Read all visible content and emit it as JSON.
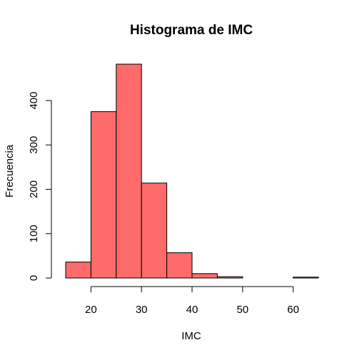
{
  "chart_data": {
    "type": "bar",
    "title": "Histograma de IMC",
    "xlabel": "IMC",
    "ylabel": "Frecuencia",
    "bins": [
      {
        "start": 15,
        "end": 20,
        "count": 36
      },
      {
        "start": 20,
        "end": 25,
        "count": 375
      },
      {
        "start": 25,
        "end": 30,
        "count": 482
      },
      {
        "start": 30,
        "end": 35,
        "count": 214
      },
      {
        "start": 35,
        "end": 40,
        "count": 57
      },
      {
        "start": 40,
        "end": 45,
        "count": 10
      },
      {
        "start": 45,
        "end": 50,
        "count": 3
      },
      {
        "start": 50,
        "end": 55,
        "count": 0
      },
      {
        "start": 55,
        "end": 60,
        "count": 0
      },
      {
        "start": 60,
        "end": 65,
        "count": 2
      }
    ],
    "xlim": [
      15,
      65
    ],
    "ylim": [
      0,
      482
    ],
    "xticks": [
      20,
      30,
      40,
      50,
      60
    ],
    "yticks": [
      0,
      100,
      200,
      300,
      400
    ],
    "bar_color": "#FF6A6A",
    "edge_color": "#000000",
    "grid": false
  }
}
